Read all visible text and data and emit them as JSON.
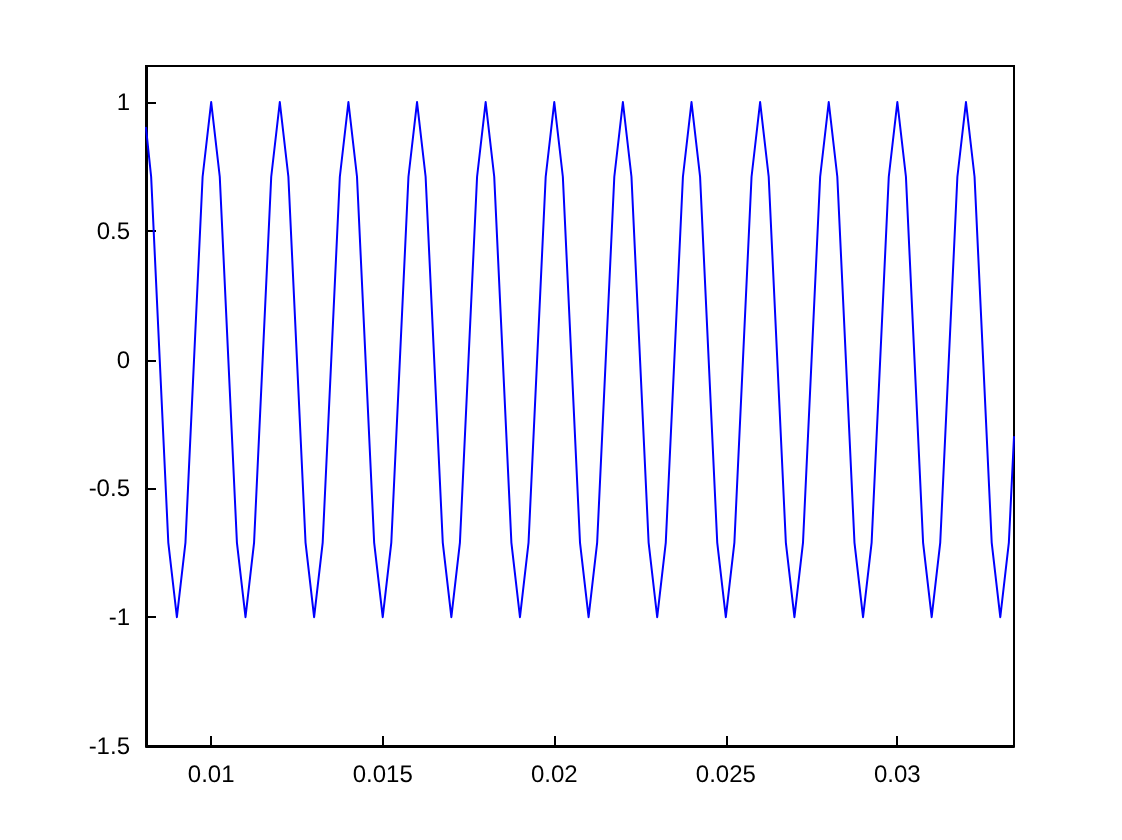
{
  "chart_data": {
    "type": "line",
    "color": "#0000ff",
    "x": [
      0.0081,
      0.00825,
      0.0085,
      0.00875,
      0.009,
      0.00925,
      0.0095,
      0.00975,
      0.01,
      0.01025,
      0.0105,
      0.01075,
      0.011,
      0.01125,
      0.0115,
      0.01175,
      0.012,
      0.01225,
      0.0125,
      0.01275,
      0.013,
      0.01325,
      0.0135,
      0.01375,
      0.014,
      0.01425,
      0.0145,
      0.01475,
      0.015,
      0.01525,
      0.0155,
      0.01575,
      0.016,
      0.01625,
      0.0165,
      0.01675,
      0.017,
      0.01725,
      0.0175,
      0.01775,
      0.018,
      0.01825,
      0.0185,
      0.01875,
      0.019,
      0.01925,
      0.0195,
      0.01975,
      0.02,
      0.02025,
      0.0205,
      0.02075,
      0.021,
      0.02125,
      0.0215,
      0.02175,
      0.022,
      0.02225,
      0.0225,
      0.02275,
      0.023,
      0.02325,
      0.0235,
      0.02375,
      0.024,
      0.02425,
      0.0245,
      0.02475,
      0.025,
      0.02525,
      0.0255,
      0.02575,
      0.026,
      0.02625,
      0.0265,
      0.02675,
      0.027,
      0.02725,
      0.0275,
      0.02775,
      0.028,
      0.02825,
      0.0285,
      0.02875,
      0.029,
      0.02925,
      0.0295,
      0.02975,
      0.03,
      0.03025,
      0.0305,
      0.03075,
      0.031,
      0.03125,
      0.0315,
      0.03175,
      0.032,
      0.03225,
      0.0325,
      0.03275,
      0.033,
      0.03325,
      0.0334
    ],
    "values": [
      0.9,
      0.71,
      0,
      -0.71,
      -1,
      -0.71,
      0,
      0.71,
      1,
      0.71,
      0,
      -0.71,
      -1,
      -0.71,
      0,
      0.71,
      1,
      0.71,
      0,
      -0.71,
      -1,
      -0.71,
      0,
      0.71,
      1,
      0.71,
      0,
      -0.71,
      -1,
      -0.71,
      0,
      0.71,
      1,
      0.71,
      0,
      -0.71,
      -1,
      -0.71,
      0,
      0.71,
      1,
      0.71,
      0,
      -0.71,
      -1,
      -0.71,
      0,
      0.71,
      1,
      0.71,
      0,
      -0.71,
      -1,
      -0.71,
      0,
      0.71,
      1,
      0.71,
      0,
      -0.71,
      -1,
      -0.71,
      0,
      0.71,
      1,
      0.71,
      0,
      -0.71,
      -1,
      -0.71,
      0,
      0.71,
      1,
      0.71,
      0,
      -0.71,
      -1,
      -0.71,
      0,
      0.71,
      1,
      0.71,
      0,
      -0.71,
      -1,
      -0.71,
      0,
      0.71,
      1,
      0.71,
      0,
      -0.71,
      -1,
      -0.71,
      0,
      0.71,
      1,
      0.71,
      0,
      -0.71,
      -1,
      -0.71,
      -0.3
    ],
    "xlim": [
      0.0081,
      0.0334
    ],
    "ylim": [
      -1.5,
      1.14
    ],
    "xticks": [
      0.01,
      0.015,
      0.02,
      0.025,
      0.03
    ],
    "yticks": [
      -1.5,
      -1,
      -0.5,
      0,
      0.5,
      1
    ]
  }
}
